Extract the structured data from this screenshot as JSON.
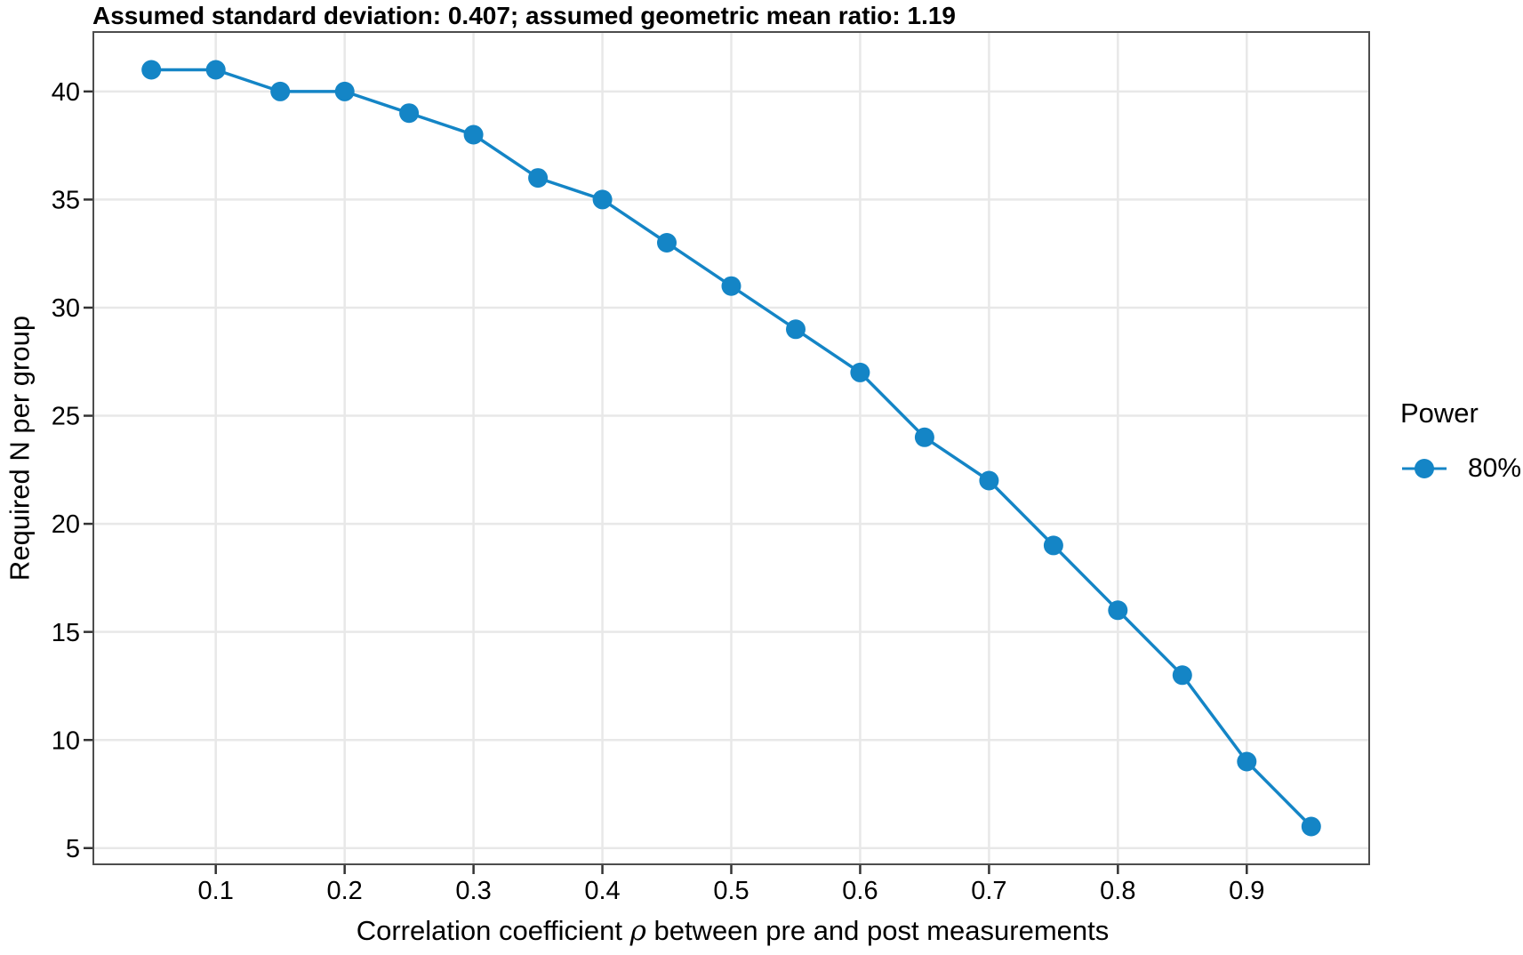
{
  "chart_data": {
    "type": "line",
    "title": "Assumed standard deviation: 0.407; assumed geometric mean ratio: 1.19",
    "xlabel": "Correlation coefficient ρ between pre and post measurements",
    "xlabel_parts": {
      "prefix": "Correlation coefficient ",
      "symbol": "ρ",
      "suffix": " between pre and post measurements"
    },
    "ylabel": "Required N per group",
    "legend": {
      "title": "Power",
      "position": "right"
    },
    "x": [
      0.05,
      0.1,
      0.15,
      0.2,
      0.25,
      0.3,
      0.35,
      0.4,
      0.45,
      0.5,
      0.55,
      0.6,
      0.65,
      0.7,
      0.75,
      0.8,
      0.85,
      0.9,
      0.95
    ],
    "series": [
      {
        "name": "80%",
        "color": "#1485C6",
        "values": [
          41,
          41,
          40,
          40,
          39,
          38,
          36,
          35,
          33,
          31,
          29,
          27,
          24,
          22,
          19,
          16,
          13,
          9,
          6
        ]
      }
    ],
    "x_ticks": {
      "values": [
        0.1,
        0.2,
        0.3,
        0.4,
        0.5,
        0.6,
        0.7,
        0.8,
        0.9
      ],
      "labels": [
        "0.1",
        "0.2",
        "0.3",
        "0.4",
        "0.5",
        "0.6",
        "0.7",
        "0.8",
        "0.9"
      ]
    },
    "y_ticks": {
      "values": [
        5,
        10,
        15,
        20,
        25,
        30,
        35,
        40
      ],
      "labels": [
        "5",
        "10",
        "15",
        "20",
        "25",
        "30",
        "35",
        "40"
      ]
    },
    "xlim": [
      0.005,
      0.995
    ],
    "ylim": [
      4.25,
      42.75
    ],
    "grid": true,
    "marker_radius": 11,
    "line_width": 3.5,
    "colors": {
      "grid": "#E8E8E8",
      "panel_border": "#4D4D4D",
      "tick": "#333333",
      "text": "#000000",
      "background": "#FFFFFF"
    }
  }
}
